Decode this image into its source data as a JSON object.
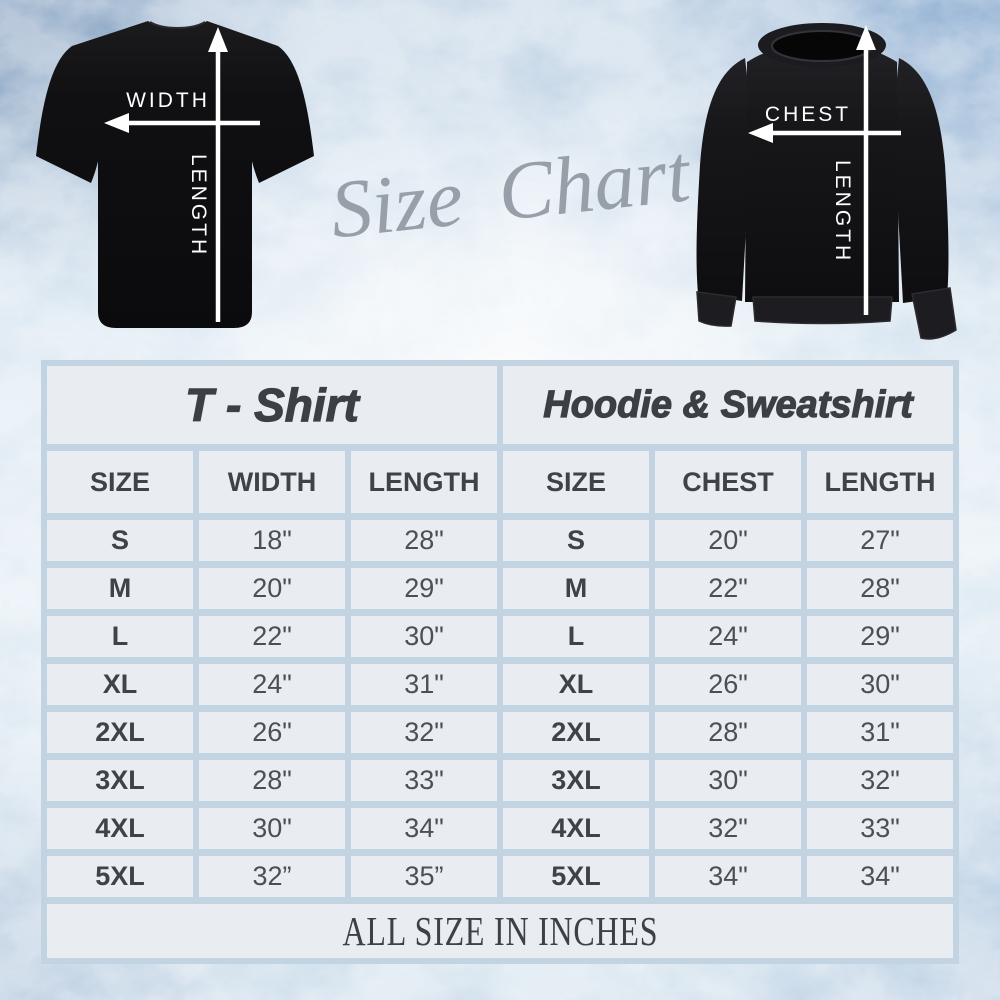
{
  "measurement_diagram": {
    "script_title": "Size Chart",
    "tshirt": {
      "horizontal_label": "WIDTH",
      "vertical_label": "LENGTH"
    },
    "sweatshirt": {
      "horizontal_label": "CHEST",
      "vertical_label": "LENGTH"
    }
  },
  "chart_data": [
    {
      "type": "table",
      "title": "T - Shirt",
      "columns": [
        "SIZE",
        "WIDTH",
        "LENGTH"
      ],
      "rows": [
        [
          "S",
          "18\"",
          "28\""
        ],
        [
          "M",
          "20\"",
          "29\""
        ],
        [
          "L",
          "22\"",
          "30\""
        ],
        [
          "XL",
          "24\"",
          "31\""
        ],
        [
          "2XL",
          "26\"",
          "32\""
        ],
        [
          "3XL",
          "28\"",
          "33\""
        ],
        [
          "4XL",
          "30\"",
          "34\""
        ],
        [
          "5XL",
          "32”",
          "35”"
        ]
      ]
    },
    {
      "type": "table",
      "title": "Hoodie & Sweatshirt",
      "columns": [
        "SIZE",
        "CHEST",
        "LENGTH"
      ],
      "rows": [
        [
          "S",
          "20\"",
          "27\""
        ],
        [
          "M",
          "22\"",
          "28\""
        ],
        [
          "L",
          "24\"",
          "29\""
        ],
        [
          "XL",
          "26\"",
          "30\""
        ],
        [
          "2XL",
          "28\"",
          "31\""
        ],
        [
          "3XL",
          "30\"",
          "32\""
        ],
        [
          "4XL",
          "32\"",
          "33\""
        ],
        [
          "5XL",
          "34\"",
          "34\""
        ]
      ]
    }
  ],
  "footer_note": "ALL SIZE IN INCHES",
  "colors": {
    "cell_background": "#e9edf2",
    "grid_gap": "#c2d3e1",
    "heading_text": "#3c3f44",
    "value_text": "#4b5055",
    "script_text": "#97a0a9",
    "garment_black": "#101012",
    "arrow_white": "#ffffff"
  }
}
